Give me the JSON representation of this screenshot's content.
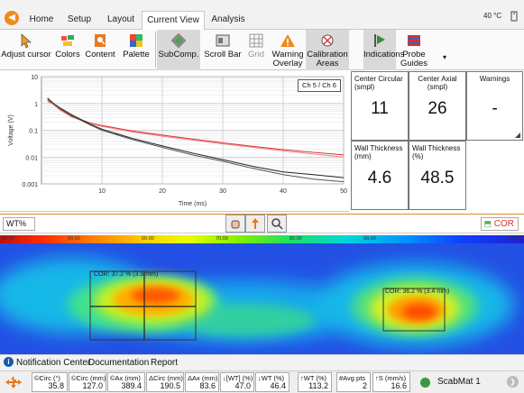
{
  "tabs": [
    {
      "label": "Home",
      "active": false
    },
    {
      "label": "Setup",
      "active": false
    },
    {
      "label": "Layout",
      "active": false
    },
    {
      "label": "Current View",
      "active": true
    },
    {
      "label": "Analysis",
      "active": false
    }
  ],
  "temperature": "40 °C",
  "ribbon": {
    "adjust_cursor": "Adjust cursor",
    "colors": "Colors",
    "content": "Content",
    "palette": "Palette",
    "subcomp": "SubComp.",
    "scroll_bar": "Scroll Bar",
    "grid": "Grid",
    "warning_overlay": [
      "Warning",
      "Overlay"
    ],
    "calibration_areas": [
      "Calibration",
      "Areas"
    ],
    "indications": "Indications",
    "probe_guides": [
      "Probe",
      "Guides"
    ]
  },
  "chart_data": {
    "type": "line",
    "title": "",
    "xlabel": "Time (ms)",
    "ylabel": "Voltage (V)",
    "xlim": [
      0,
      50
    ],
    "ylim": [
      0.001,
      10
    ],
    "yscale": "log",
    "xticks": [
      "10",
      "20",
      "30",
      "40",
      "50"
    ],
    "yticks": [
      "0.001",
      "0.01",
      "0.1",
      "1",
      "10"
    ],
    "legend": "Ch 5 / Ch 6",
    "grid": true,
    "series": [
      {
        "color": "#e03030",
        "x": [
          1,
          2,
          3,
          5,
          8,
          10,
          15,
          20,
          25,
          30,
          35,
          40,
          45,
          50
        ],
        "y": [
          1.3,
          0.95,
          0.62,
          0.33,
          0.19,
          0.15,
          0.095,
          0.066,
          0.047,
          0.034,
          0.025,
          0.019,
          0.015,
          0.012
        ]
      },
      {
        "color": "#f08080",
        "x": [
          1,
          2,
          3,
          5,
          8,
          10,
          15,
          20,
          25,
          30,
          35,
          40,
          45,
          50
        ],
        "y": [
          1.2,
          0.9,
          0.58,
          0.31,
          0.18,
          0.14,
          0.088,
          0.06,
          0.043,
          0.031,
          0.023,
          0.017,
          0.013,
          0.01
        ]
      },
      {
        "color": "#222222",
        "x": [
          1,
          2,
          3,
          5,
          8,
          10,
          15,
          20,
          25,
          30,
          35,
          40,
          45,
          50
        ],
        "y": [
          1.6,
          1.0,
          0.7,
          0.38,
          0.17,
          0.11,
          0.05,
          0.026,
          0.014,
          0.008,
          0.0045,
          0.0028,
          0.0022,
          0.0017
        ]
      },
      {
        "color": "#555555",
        "x": [
          1,
          2,
          3,
          5,
          8,
          10,
          15,
          20,
          25,
          30,
          35,
          40,
          45,
          50
        ],
        "y": [
          1.5,
          0.95,
          0.65,
          0.35,
          0.16,
          0.1,
          0.045,
          0.023,
          0.012,
          0.007,
          0.0038,
          0.0022,
          0.0015,
          0.0012
        ]
      }
    ]
  },
  "metrics": {
    "center_circular": {
      "label": "Center Circular (smpl)",
      "value": "11"
    },
    "center_axial": {
      "label": "Center Axial (smpl)",
      "value": "26"
    },
    "warnings": {
      "label": "Warnings",
      "value": "-"
    },
    "wall_thickness_mm": {
      "label": "Wall Thickness (mm)",
      "value": "4.6"
    },
    "wall_thickness_pct": {
      "label": "Wall Thickness (%)",
      "value": "48.5"
    }
  },
  "cscan": {
    "view_select": "WT%",
    "cor_button": "COR",
    "scale_ticks": [
      "40.00",
      "50.00",
      "60.00",
      "70.00",
      "80.00",
      "90.00",
      "100.00"
    ],
    "indications": [
      {
        "label": "COR: 37.2 % (3.5 mm)"
      },
      {
        "label": "COR: 36.2 % (3.4 mm)"
      }
    ]
  },
  "notifications": {
    "info_icon": "i",
    "links": [
      "Notification Center",
      "Documentation",
      "Report"
    ]
  },
  "status_cells": [
    {
      "label": "©Circ (°)",
      "value": "35.8"
    },
    {
      "label": "©Circ (mm)",
      "value": "127.0"
    },
    {
      "label": "©Ax (mm)",
      "value": "389.4"
    },
    {
      "label": "ΔCirc (mm)",
      "value": "190.5"
    },
    {
      "label": "ΔAx (mm)",
      "value": "83.6"
    },
    {
      "label": "↓[WT] (%)",
      "value": "47.0"
    },
    {
      "label": "↓WT (%)",
      "value": "46.4"
    },
    {
      "label": "↑WT (%)",
      "value": "113.2"
    },
    {
      "label": "#Avg pts",
      "value": "2"
    },
    {
      "label": "↑S (mm/s)",
      "value": "16.6"
    }
  ],
  "scabmat": "ScabMat 1"
}
